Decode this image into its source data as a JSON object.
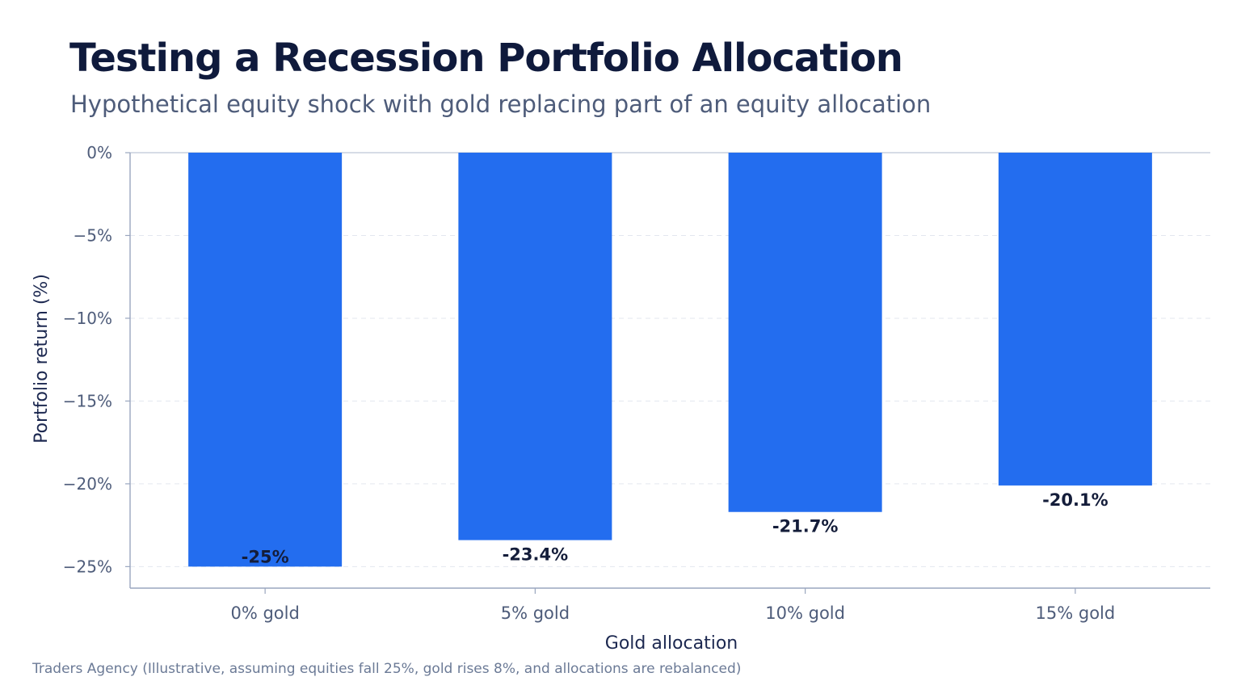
{
  "title": "Testing a Recession Portfolio Allocation",
  "subtitle": "Hypothetical equity shock with gold replacing part of an equity allocation",
  "source": "Traders Agency (Illustrative, assuming equities fall 25%, gold rises 8%, and allocations are rebalanced)",
  "colors": {
    "bar": "#236def",
    "grid": "#e3e7ef",
    "axis": "#9aa6bf"
  },
  "chart_data": {
    "type": "bar",
    "title": "Testing a Recession Portfolio Allocation",
    "subtitle": "Hypothetical equity shock with gold replacing part of an equity allocation",
    "xlabel": "Gold allocation",
    "ylabel": "Portfolio return (%)",
    "categories": [
      "0% gold",
      "5% gold",
      "10% gold",
      "15% gold"
    ],
    "values": [
      -25,
      -23.4,
      -21.7,
      -20.1
    ],
    "data_labels": [
      "-25%",
      "-23.4%",
      "-21.7%",
      "-20.1%"
    ],
    "ylim": [
      -26.3,
      0
    ],
    "yticks": [
      0,
      -5,
      -10,
      -15,
      -20,
      -25
    ],
    "ytick_labels": [
      "0%",
      "−5%",
      "−10%",
      "−15%",
      "−20%",
      "−25%"
    ],
    "grid": true,
    "legend": "none"
  }
}
